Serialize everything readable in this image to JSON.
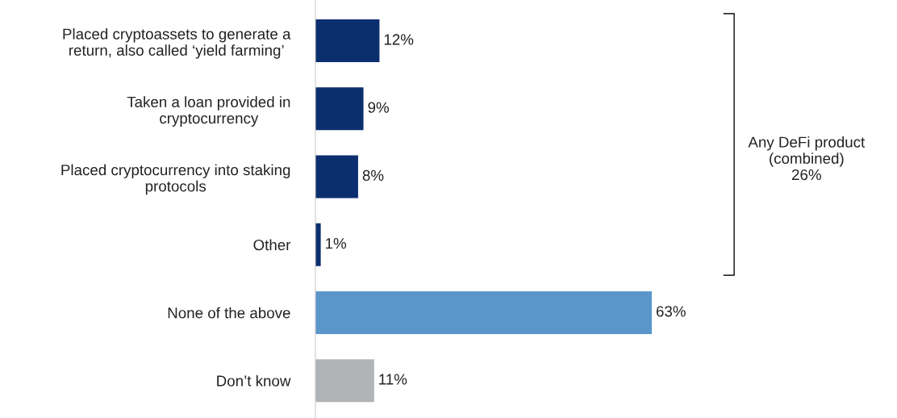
{
  "chart_data": {
    "type": "bar",
    "orientation": "horizontal",
    "categories": [
      "Placed cryptoassets to generate a\nreturn, also called ‘yield farming’",
      "Taken a loan provided in\ncryptocurrency",
      "Placed cryptocurrency into staking\nprotocols",
      "Other",
      "None of the above",
      "Don’t know"
    ],
    "values": [
      12,
      9,
      8,
      1,
      63,
      11
    ],
    "colors": [
      "#0b2f6e",
      "#0b2f6e",
      "#0b2f6e",
      "#0b2f6e",
      "#5b96cb",
      "#b1b4b7"
    ],
    "value_labels": [
      "12%",
      "9%",
      "8%",
      "1%",
      "63%",
      "11%"
    ],
    "annotations": [
      "Any DeFi product\n(combined)\n26%"
    ],
    "grid": false,
    "legend": false
  }
}
